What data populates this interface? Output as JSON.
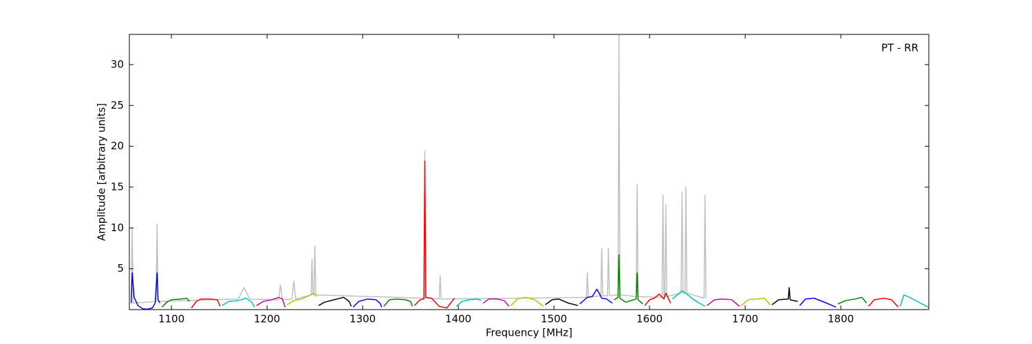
{
  "chart_data": {
    "type": "line",
    "annotation": "PT - RR",
    "x_label": "Frequency [MHz]",
    "y_label": "Amplitude [arbitrary units]",
    "xlim": [
      1056,
      1892
    ],
    "ylim": [
      0,
      33.7
    ],
    "xticks": [
      1100,
      1200,
      1300,
      1400,
      1500,
      1600,
      1700,
      1800
    ],
    "yticks": [
      5,
      10,
      15,
      20,
      25,
      30
    ],
    "series": [
      {
        "color": "#c0c0c0",
        "x": [
          1058,
          1059,
          1060,
          1084,
          1085,
          1086,
          1170,
          1176,
          1182,
          1212,
          1214,
          1216,
          1226,
          1228,
          1230,
          1246,
          1247,
          1248,
          1249,
          1250,
          1251,
          1364,
          1365,
          1366,
          1380,
          1381,
          1382,
          1534,
          1535,
          1536,
          1549,
          1550,
          1551,
          1556,
          1557,
          1558,
          1567,
          1568,
          1569,
          1586,
          1587,
          1588,
          1613,
          1614,
          1615,
          1616,
          1617,
          1618,
          1633,
          1634,
          1635,
          1637,
          1638,
          1639,
          1657,
          1658,
          1659
        ],
        "values": [
          1,
          10,
          0.8,
          1,
          10.4,
          1,
          1.3,
          2.7,
          1.3,
          1.2,
          3,
          1.2,
          1.3,
          3.5,
          1.3,
          1.8,
          6.2,
          1.8,
          1.8,
          7.8,
          1.8,
          1.4,
          19.4,
          1.4,
          1.3,
          4.2,
          1.3,
          1.5,
          4.5,
          1.5,
          1.7,
          7.5,
          1.7,
          1.7,
          7.5,
          1.7,
          1.8,
          33.7,
          1.8,
          1.6,
          15.3,
          1.6,
          1.5,
          14,
          1.5,
          1.6,
          12.8,
          1.6,
          2,
          14.4,
          2,
          2,
          15,
          2,
          1.4,
          14,
          1.4
        ]
      },
      {
        "color": "#0000ff",
        "x": [
          1058,
          1059,
          1061,
          1065,
          1070,
          1075,
          1080,
          1083,
          1085,
          1086,
          1088
        ],
        "values": [
          0.8,
          4.5,
          1.5,
          0.5,
          0.1,
          0.05,
          0.2,
          0.8,
          4.5,
          1.2,
          0.8
        ]
      },
      {
        "color": "#008000",
        "x": [
          1090,
          1095,
          1100,
          1110,
          1116,
          1119
        ],
        "values": [
          0.3,
          0.9,
          1.2,
          1.3,
          1.4,
          1.0
        ]
      },
      {
        "color": "#ff0000",
        "x": [
          1121,
          1126,
          1131,
          1140,
          1148,
          1151
        ],
        "values": [
          0.2,
          1.0,
          1.3,
          1.3,
          1.2,
          0.4
        ]
      },
      {
        "color": "#00bfbf",
        "x": [
          1153,
          1160,
          1170,
          1178,
          1184,
          1187
        ],
        "values": [
          0.5,
          1.0,
          1.1,
          1.4,
          0.9,
          0.3
        ]
      },
      {
        "color": "#bf00bf",
        "x": [
          1189,
          1196,
          1205,
          1212,
          1216,
          1219
        ],
        "values": [
          0.5,
          1.0,
          1.2,
          1.5,
          1.3,
          0.3
        ]
      },
      {
        "color": "#bfbf00",
        "x": [
          1221,
          1228,
          1236,
          1244,
          1249,
          1252
        ],
        "values": [
          0.6,
          1.1,
          1.3,
          1.7,
          2.0,
          1.6
        ]
      },
      {
        "color": "#000000",
        "x": [
          1254,
          1260,
          1270,
          1280,
          1286,
          1288
        ],
        "values": [
          0.5,
          0.9,
          1.2,
          1.5,
          1.0,
          0.4
        ]
      },
      {
        "color": "#0000ff",
        "x": [
          1290,
          1296,
          1305,
          1314,
          1318,
          1320
        ],
        "values": [
          0.3,
          1.0,
          1.3,
          1.2,
          0.8,
          0.3
        ]
      },
      {
        "color": "#008000",
        "x": [
          1322,
          1328,
          1336,
          1345,
          1350,
          1352
        ],
        "values": [
          0.4,
          1.2,
          1.3,
          1.2,
          1.0,
          0.4
        ]
      },
      {
        "color": "#ff0000",
        "x": [
          1354,
          1360,
          1364,
          1365,
          1366,
          1372,
          1380,
          1388,
          1396
        ],
        "values": [
          0.5,
          1.2,
          1.3,
          18.2,
          1.5,
          1.4,
          0.4,
          0.2,
          1.4
        ]
      },
      {
        "color": "#00bfbf",
        "x": [
          1398,
          1404,
          1412,
          1420,
          1424
        ],
        "values": [
          0.4,
          1.0,
          1.2,
          1.3,
          1.1
        ]
      },
      {
        "color": "#bf00bf",
        "x": [
          1426,
          1432,
          1440,
          1448,
          1453
        ],
        "values": [
          0.8,
          1.3,
          1.3,
          1.1,
          0.4
        ]
      },
      {
        "color": "#bfbf00",
        "x": [
          1455,
          1462,
          1470,
          1480,
          1489
        ],
        "values": [
          0.5,
          1.3,
          1.5,
          1.2,
          0.4
        ]
      },
      {
        "color": "#000000",
        "x": [
          1491,
          1498,
          1505,
          1515,
          1525
        ],
        "values": [
          0.6,
          1.2,
          1.3,
          0.8,
          0.5
        ]
      },
      {
        "color": "#0000ff",
        "x": [
          1527,
          1535,
          1540,
          1545,
          1550,
          1555,
          1561
        ],
        "values": [
          0.7,
          1.5,
          1.6,
          2.5,
          1.4,
          1.3,
          0.8
        ]
      },
      {
        "color": "#008000",
        "x": [
          1563,
          1567,
          1568,
          1569,
          1575,
          1586,
          1587,
          1588,
          1593
        ],
        "values": [
          1.2,
          1.5,
          6.7,
          1.4,
          0.9,
          1.3,
          4.5,
          1.2,
          0.7
        ]
      },
      {
        "color": "#ff0000",
        "x": [
          1595,
          1600,
          1605,
          1610,
          1615,
          1617,
          1622
        ],
        "values": [
          0.5,
          1.2,
          1.4,
          1.9,
          1.3,
          2.0,
          0.8
        ]
      },
      {
        "color": "#00bfbf",
        "x": [
          1624,
          1634,
          1638,
          1645,
          1652,
          1658
        ],
        "values": [
          1.3,
          2.3,
          2.0,
          1.3,
          0.8,
          0.4
        ]
      },
      {
        "color": "#bf00bf",
        "x": [
          1660,
          1668,
          1676,
          1686,
          1694
        ],
        "values": [
          0.5,
          1.2,
          1.3,
          1.2,
          0.4
        ]
      },
      {
        "color": "#bfbf00",
        "x": [
          1696,
          1703,
          1712,
          1720,
          1726
        ],
        "values": [
          0.5,
          1.2,
          1.3,
          1.4,
          0.6
        ]
      },
      {
        "color": "#000000",
        "x": [
          1728,
          1735,
          1745,
          1746,
          1747,
          1755
        ],
        "values": [
          0.6,
          1.2,
          1.3,
          2.7,
          1.2,
          1.0
        ]
      },
      {
        "color": "#0000ff",
        "x": [
          1757,
          1763,
          1772,
          1785,
          1795
        ],
        "values": [
          0.5,
          1.3,
          1.4,
          0.8,
          0.3
        ]
      },
      {
        "color": "#008000",
        "x": [
          1797,
          1805,
          1815,
          1822,
          1827
        ],
        "values": [
          0.7,
          1.1,
          1.3,
          1.5,
          0.8
        ]
      },
      {
        "color": "#ff0000",
        "x": [
          1829,
          1835,
          1845,
          1853,
          1860
        ],
        "values": [
          0.4,
          1.2,
          1.4,
          1.2,
          0.3
        ]
      },
      {
        "color": "#00bfbf",
        "x": [
          1862,
          1866,
          1872,
          1880,
          1888,
          1892
        ],
        "values": [
          0.4,
          1.8,
          1.5,
          1.0,
          0.5,
          0.3
        ]
      }
    ]
  }
}
